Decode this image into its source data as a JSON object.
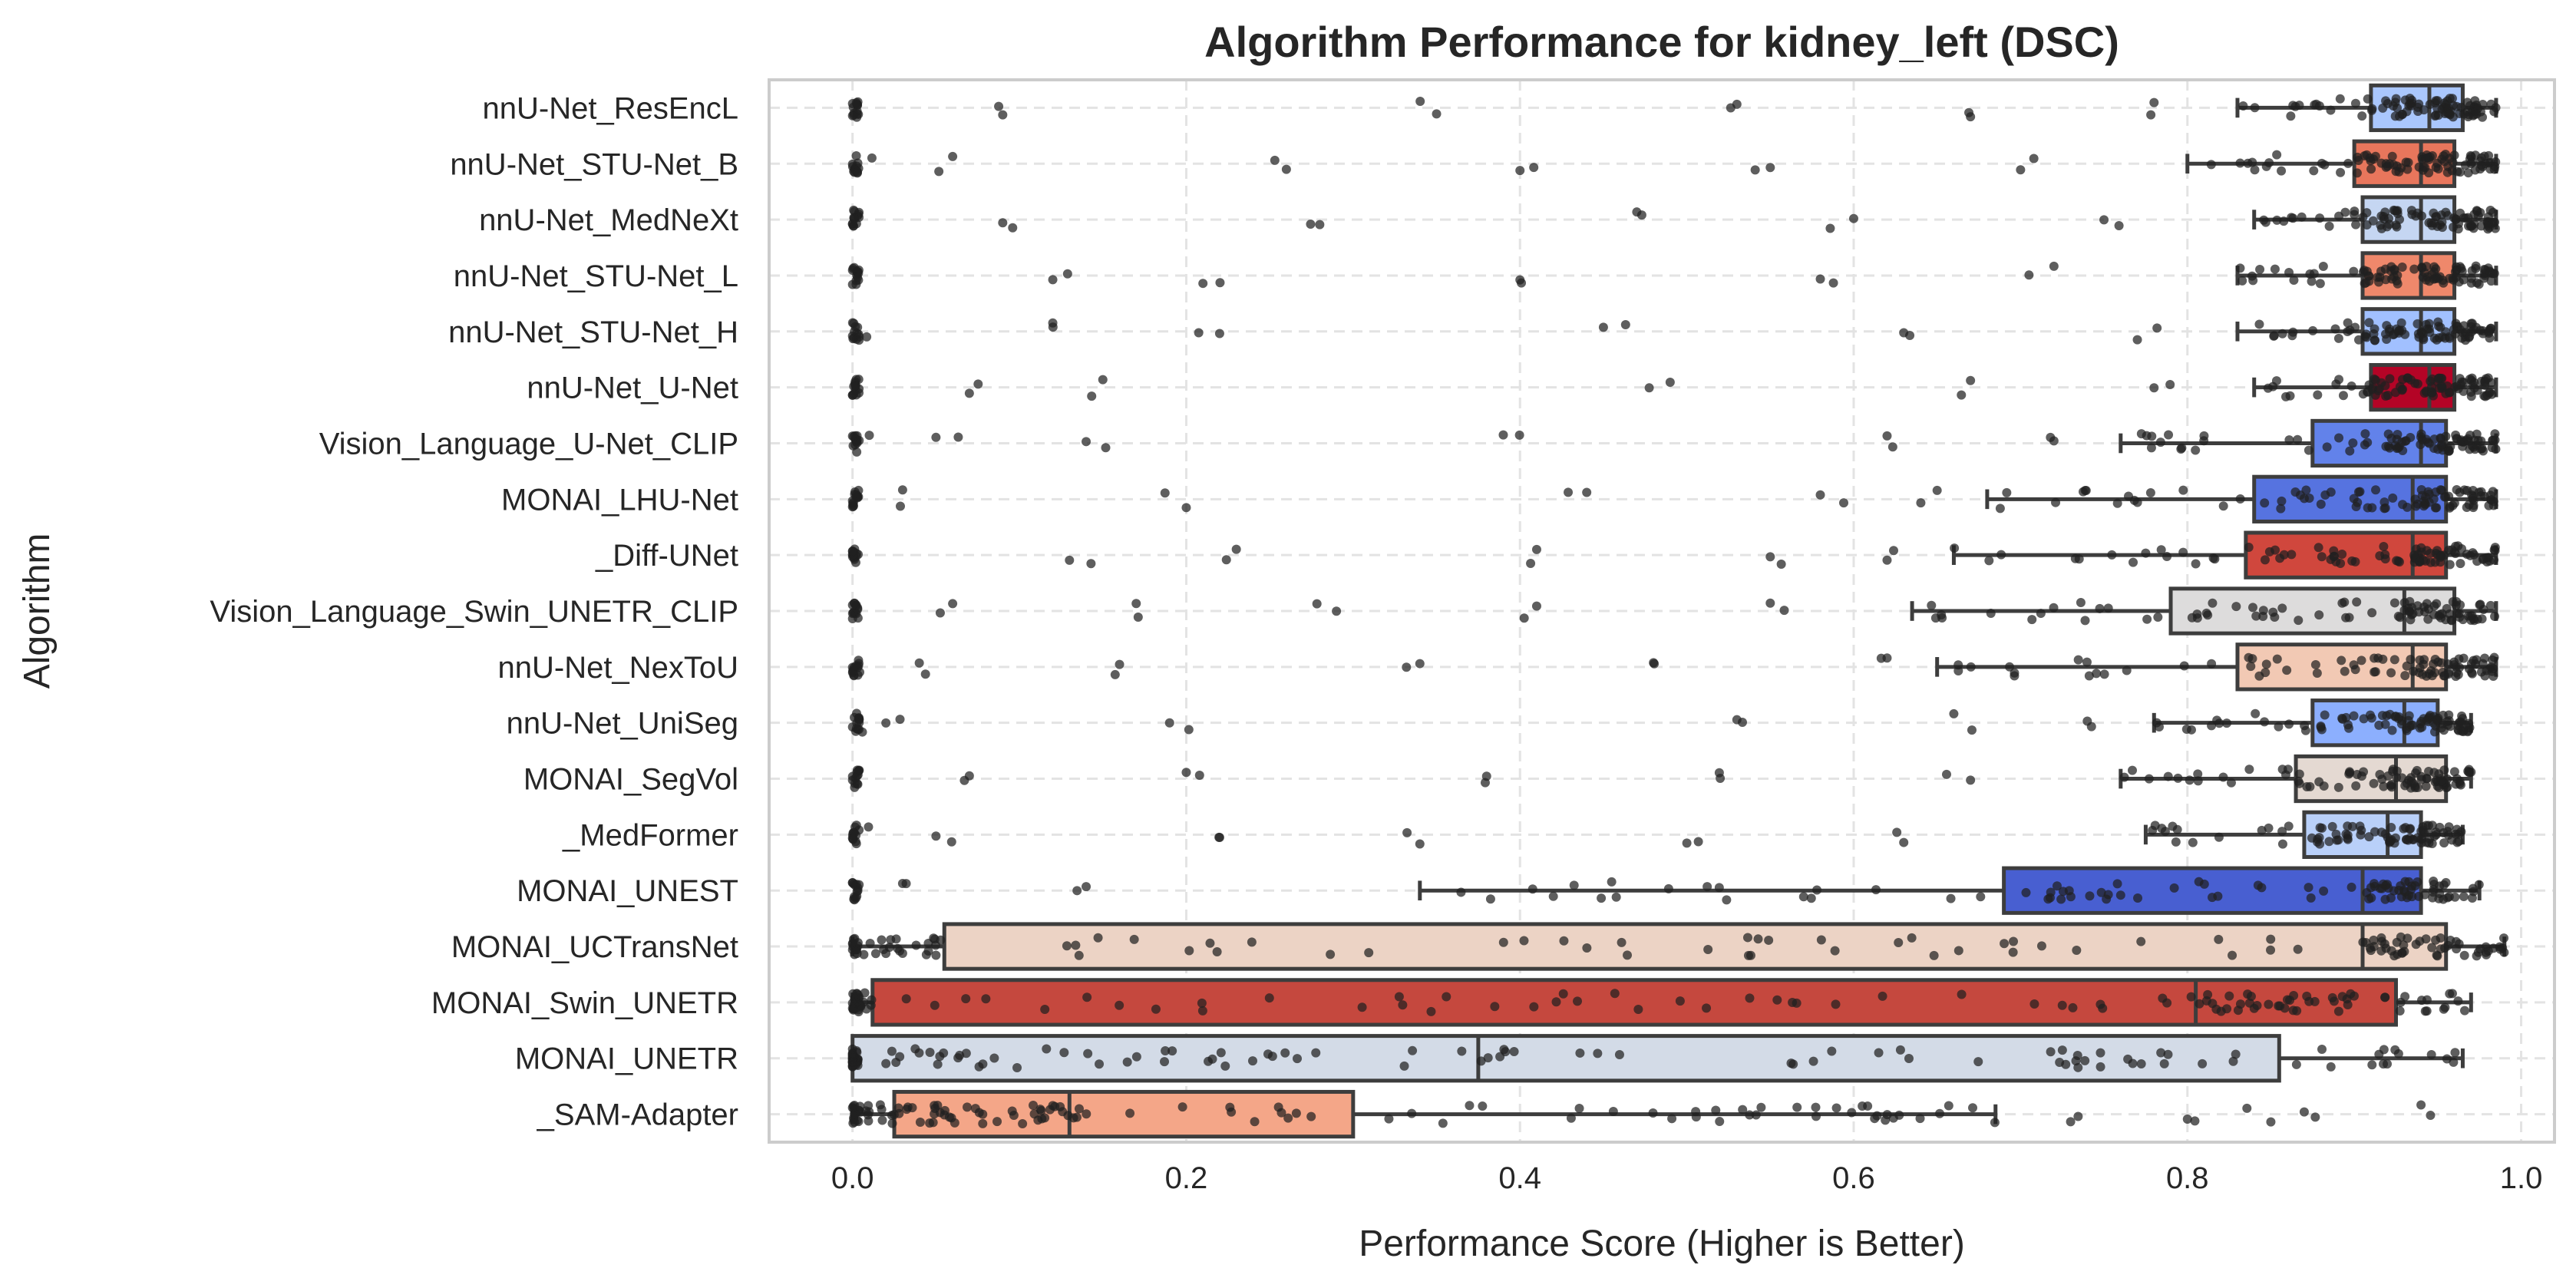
{
  "chart_data": {
    "type": "box",
    "orientation": "horizontal",
    "title": "Algorithm Performance for kidney_left (DSC)",
    "xlabel": "Performance Score (Higher is Better)",
    "ylabel": "Algorithm",
    "xlim": [
      -0.05,
      1.02
    ],
    "xticks": [
      0.0,
      0.2,
      0.4,
      0.6,
      0.8,
      1.0
    ],
    "xtick_labels": [
      "0.0",
      "0.2",
      "0.4",
      "0.6",
      "0.8",
      "1.0"
    ],
    "grid": true,
    "overlay": "jittered individual case scores (strip plot)",
    "series": [
      {
        "name": "nnU-Net_ResEncL",
        "whisker_low": 0.83,
        "q1": 0.91,
        "median": 0.945,
        "q3": 0.965,
        "whisker_high": 0.985,
        "color": "#aac7fd",
        "spread": [
          0.0,
          0.09,
          0.35,
          0.53,
          0.67,
          0.78
        ]
      },
      {
        "name": "nnU-Net_STU-Net_B",
        "whisker_low": 0.8,
        "q1": 0.9,
        "median": 0.94,
        "q3": 0.96,
        "whisker_high": 0.985,
        "color": "#e8765c",
        "spread": [
          0.0,
          0.06,
          0.26,
          0.4,
          0.55,
          0.7
        ]
      },
      {
        "name": "nnU-Net_MedNeXt",
        "whisker_low": 0.84,
        "q1": 0.905,
        "median": 0.94,
        "q3": 0.96,
        "whisker_high": 0.985,
        "color": "#c5d6f2",
        "spread": [
          0.0,
          0.09,
          0.28,
          0.47,
          0.6,
          0.75
        ]
      },
      {
        "name": "nnU-Net_STU-Net_L",
        "whisker_low": 0.83,
        "q1": 0.905,
        "median": 0.94,
        "q3": 0.96,
        "whisker_high": 0.985,
        "color": "#ef886b",
        "spread": [
          0.0,
          0.12,
          0.21,
          0.4,
          0.58,
          0.72
        ]
      },
      {
        "name": "nnU-Net_STU-Net_H",
        "whisker_low": 0.83,
        "q1": 0.905,
        "median": 0.94,
        "q3": 0.96,
        "whisker_high": 0.985,
        "color": "#a1c0ff",
        "spread": [
          0.0,
          0.12,
          0.22,
          0.45,
          0.63,
          0.77
        ]
      },
      {
        "name": "nnU-Net_U-Net",
        "whisker_low": 0.84,
        "q1": 0.91,
        "median": 0.945,
        "q3": 0.96,
        "whisker_high": 0.985,
        "color": "#b40426",
        "spread": [
          0.0,
          0.07,
          0.15,
          0.49,
          0.67,
          0.78
        ]
      },
      {
        "name": "Vision_Language_U-Net_CLIP",
        "whisker_low": 0.76,
        "q1": 0.875,
        "median": 0.94,
        "q3": 0.955,
        "whisker_high": 0.985,
        "color": "#6282ea",
        "spread": [
          0.0,
          0.05,
          0.14,
          0.39,
          0.62,
          0.72
        ]
      },
      {
        "name": "MONAI_LHU-Net",
        "whisker_low": 0.68,
        "q1": 0.84,
        "median": 0.935,
        "q3": 0.955,
        "whisker_high": 0.985,
        "color": "#5673e0",
        "spread": [
          0.0,
          0.03,
          0.2,
          0.44,
          0.58,
          0.65
        ]
      },
      {
        "name": "_Diff-UNet",
        "whisker_low": 0.66,
        "q1": 0.835,
        "median": 0.935,
        "q3": 0.955,
        "whisker_high": 0.985,
        "color": "#d0473d",
        "spread": [
          0.0,
          0.13,
          0.23,
          0.41,
          0.55,
          0.62
        ]
      },
      {
        "name": "Vision_Language_Swin_UNETR_CLIP",
        "whisker_low": 0.635,
        "q1": 0.79,
        "median": 0.93,
        "q3": 0.96,
        "whisker_high": 0.985,
        "color": "#dddcdc",
        "spread": [
          0.0,
          0.06,
          0.17,
          0.29,
          0.41,
          0.55
        ]
      },
      {
        "name": "nnU-Net_NexToU",
        "whisker_low": 0.65,
        "q1": 0.83,
        "median": 0.935,
        "q3": 0.955,
        "whisker_high": 0.985,
        "color": "#f2c9b4",
        "spread": [
          0.0,
          0.04,
          0.16,
          0.34,
          0.48,
          0.62
        ]
      },
      {
        "name": "nnU-Net_UniSeg",
        "whisker_low": 0.78,
        "q1": 0.875,
        "median": 0.93,
        "q3": 0.95,
        "whisker_high": 0.97,
        "color": "#8caffe",
        "spread": [
          0.0,
          0.02,
          0.19,
          0.53,
          0.66,
          0.74
        ]
      },
      {
        "name": "MONAI_SegVol",
        "whisker_low": 0.76,
        "q1": 0.865,
        "median": 0.925,
        "q3": 0.955,
        "whisker_high": 0.97,
        "color": "#e4d9d2",
        "spread": [
          0.0,
          0.07,
          0.2,
          0.38,
          0.52,
          0.67
        ]
      },
      {
        "name": "_MedFormer",
        "whisker_low": 0.775,
        "q1": 0.87,
        "median": 0.92,
        "q3": 0.94,
        "whisker_high": 0.965,
        "color": "#b9d0f9",
        "spread": [
          0.0,
          0.05,
          0.22,
          0.34,
          0.5,
          0.63
        ]
      },
      {
        "name": "MONAI_UNEST",
        "whisker_low": 0.34,
        "q1": 0.69,
        "median": 0.905,
        "q3": 0.94,
        "whisker_high": 0.975,
        "color": "#485fd1",
        "spread": [
          0.0,
          0.03,
          0.14,
          0.42,
          0.57,
          0.76
        ]
      },
      {
        "name": "MONAI_UCTransNet",
        "whisker_low": 0.0,
        "q1": 0.055,
        "median": 0.905,
        "q3": 0.955,
        "whisker_high": 0.99,
        "color": "#ecd3c5",
        "spread": [
          0.0,
          0.02,
          0.05,
          0.03
        ]
      },
      {
        "name": "MONAI_Swin_UNETR",
        "whisker_low": 0.0,
        "q1": 0.012,
        "median": 0.805,
        "q3": 0.925,
        "whisker_high": 0.97,
        "color": "#c5483e",
        "spread": [
          0.0,
          0.005
        ]
      },
      {
        "name": "MONAI_UNETR",
        "whisker_low": 0.0,
        "q1": 0.0,
        "median": 0.375,
        "q3": 0.855,
        "whisker_high": 0.965,
        "color": "#d3dbe7",
        "spread": [
          0.0,
          0.002
        ]
      },
      {
        "name": "_SAM-Adapter",
        "whisker_low": 0.0,
        "q1": 0.025,
        "median": 0.13,
        "q3": 0.3,
        "whisker_high": 0.685,
        "color": "#f4a688",
        "spread": [
          0.0,
          0.73,
          0.8,
          0.85,
          0.87,
          0.94
        ]
      }
    ]
  }
}
